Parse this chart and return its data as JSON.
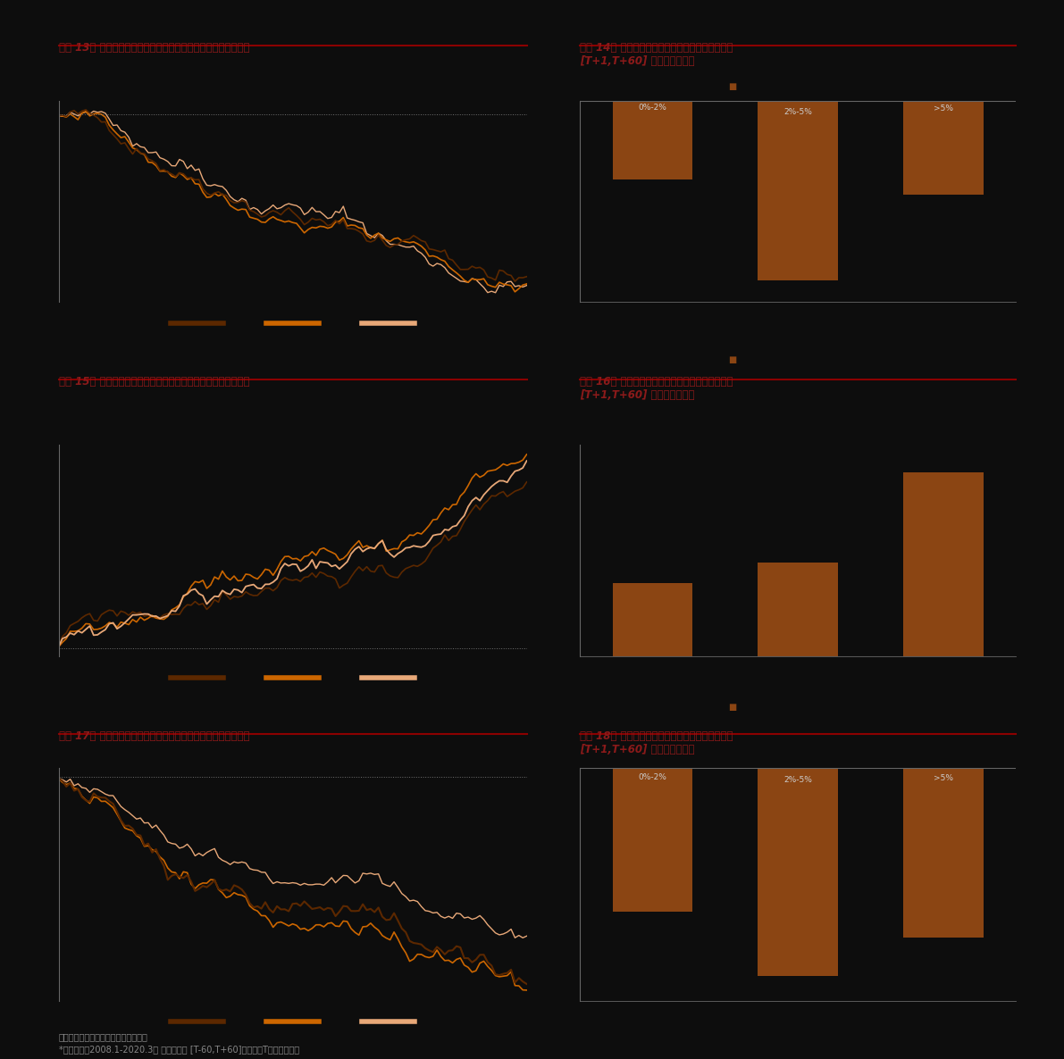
{
  "background_color": "#0d0d0d",
  "plot_bg": "#0d0d0d",
  "title_color": "#8B1a1a",
  "text_color": "#cccccc",
  "line_color_dark": "#5c2800",
  "line_color_mid": "#cc6600",
  "line_color_light": "#e8a878",
  "bar_color": "#8B4513",
  "axis_color": "#666666",
  "dot_line_color": "#888888",
  "separator_color": "#8B0000",
  "footnote_color": "#888888",
  "titles": [
    "图表 13： 不同公夸持仓比例的个股发布业绩坏消息累计超额收益",
    "图表 14： 不同公夸持仓比例的个股发布业绩坏消息\n[T+1,T+60] 日累计超额收益",
    "图表 15： 不同外资持仓比例的个股发布业绩好消息累计超额收益",
    "图表 16： 不同外资持仓比例的个股发布业绩好消息\n[T+1,T+60] 日累计超额收益",
    "图表 17： 不同外资持仓比例的个股发布业绩坏消息累计超额收益",
    "图表 18： 不同外资持仓比例的个股发布业绩坏消息\n[T+1,T+60] 日累计超额收益"
  ],
  "bar_categories": [
    "0%-2%",
    "2%-5%",
    ">5%"
  ],
  "bar14_values": [
    -3.5,
    -8.0,
    -4.2
  ],
  "bar16_values": [
    2.2,
    2.8,
    5.5
  ],
  "bar18_values": [
    -3.8,
    -5.5,
    -4.5
  ],
  "footnote": "资料来源：万得资讯、中金公司研究部",
  "footnote2": "*时间区间为2008.1-2020.3， 业绩窗口为 [T-60,T+60]公布日，T为业绩发布日"
}
